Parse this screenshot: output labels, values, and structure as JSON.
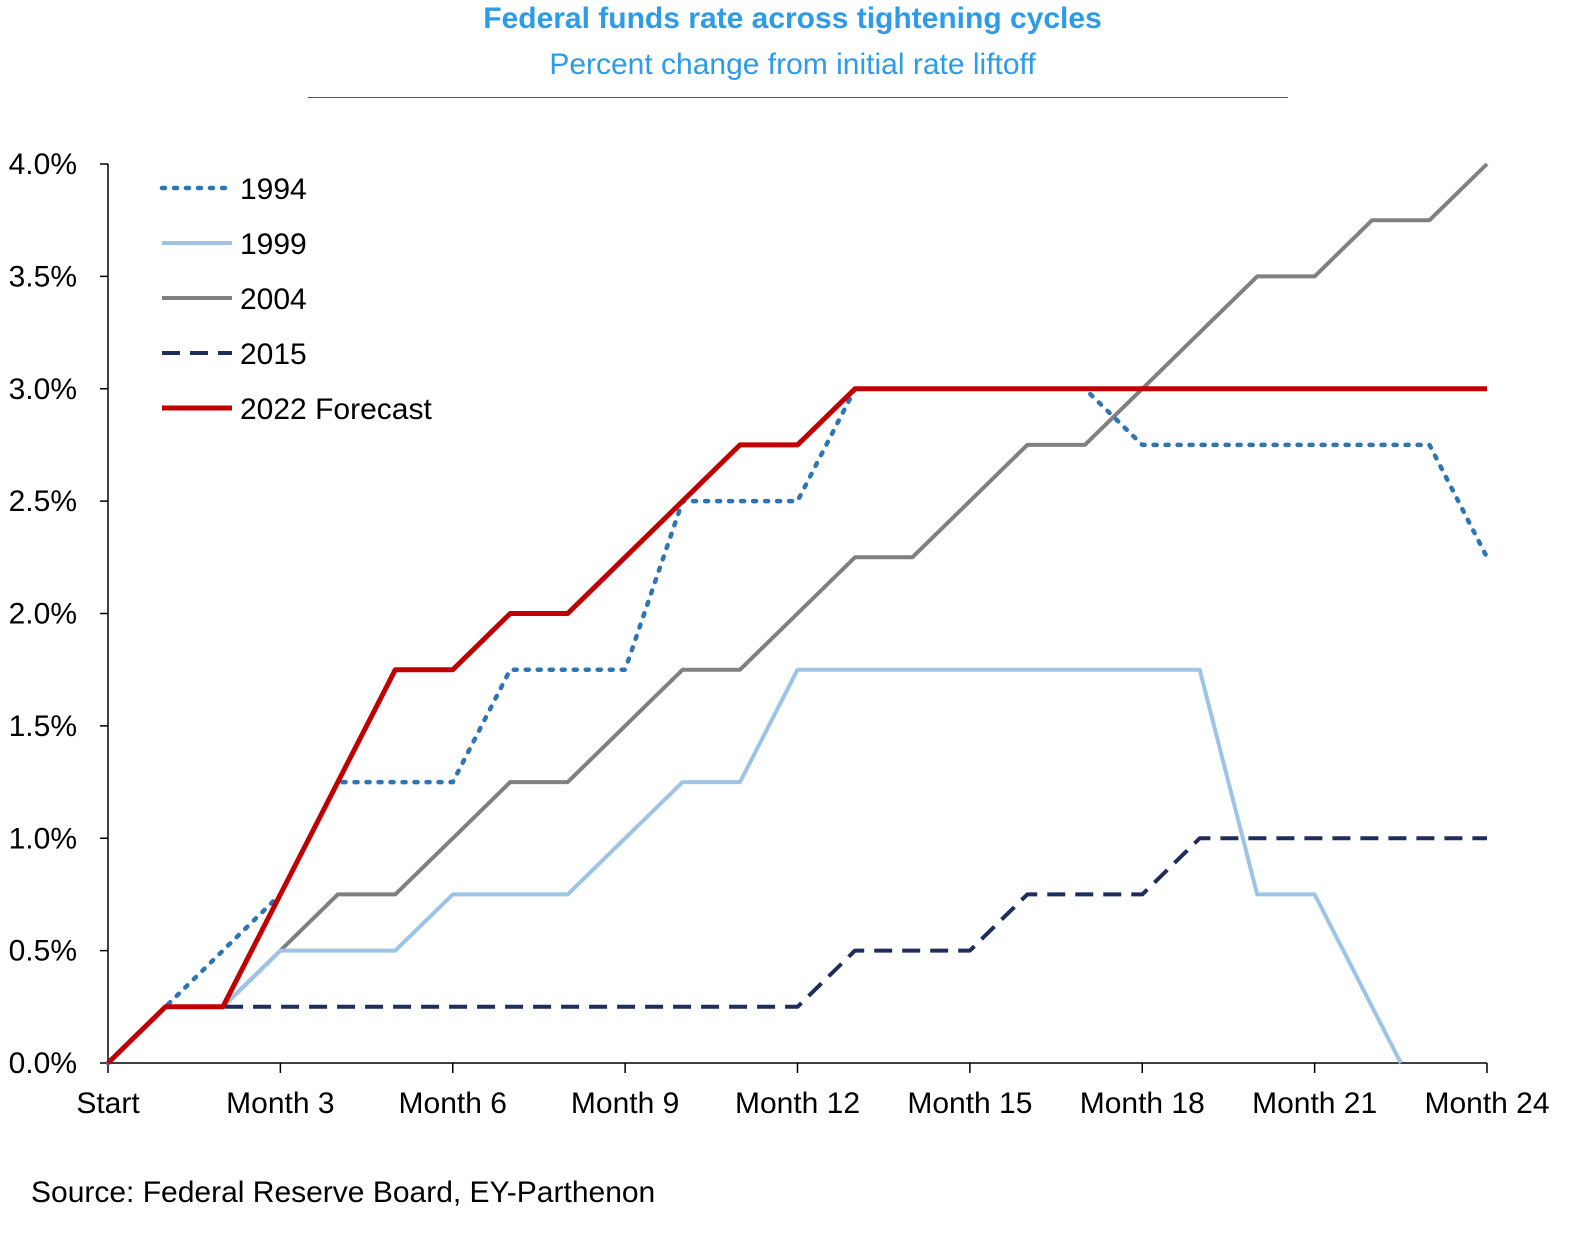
{
  "chart_data": {
    "type": "line",
    "title": "Federal funds rate across tightening cycles",
    "subtitle": "Percent change from initial rate liftoff",
    "source": "Source: Federal Reserve Board, EY-Parthenon",
    "x_months": [
      0,
      1,
      2,
      3,
      4,
      5,
      6,
      7,
      8,
      9,
      10,
      11,
      12,
      13,
      14,
      15,
      16,
      17,
      18,
      19,
      20,
      21,
      22,
      23,
      24
    ],
    "x_tick_labels": [
      "Start",
      "Month 3",
      "Month 6",
      "Month 9",
      "Month 12",
      "Month 15",
      "Month 18",
      "Month 21",
      "Month 24"
    ],
    "x_tick_months": [
      0,
      3,
      6,
      9,
      12,
      15,
      18,
      21,
      24
    ],
    "y_tick_labels": [
      "0.0%",
      "0.5%",
      "1.0%",
      "1.5%",
      "2.0%",
      "2.5%",
      "3.0%",
      "3.5%",
      "4.0%"
    ],
    "y_tick_values": [
      0,
      0.5,
      1.0,
      1.5,
      2.0,
      2.5,
      3.0,
      3.5,
      4.0
    ],
    "ylim": [
      0,
      4.0
    ],
    "xlim": [
      0,
      24
    ],
    "legend_position": "top-left",
    "grid": false,
    "series": [
      {
        "name": "1994",
        "color": "#2e75b6",
        "style": "dotted",
        "x": [
          0,
          1,
          2,
          3,
          4,
          5,
          6,
          7,
          8,
          9,
          10,
          11,
          12,
          13,
          14,
          15,
          16,
          17,
          18,
          19,
          20,
          21,
          22,
          23,
          24
        ],
        "values": [
          0,
          0.25,
          0.5,
          0.75,
          1.25,
          1.25,
          1.25,
          1.75,
          1.75,
          1.75,
          2.5,
          2.5,
          2.5,
          3.0,
          3.0,
          3.0,
          3.0,
          3.0,
          2.75,
          2.75,
          2.75,
          2.75,
          2.75,
          2.75,
          2.25
        ]
      },
      {
        "name": "1999",
        "color": "#9dc3e6",
        "style": "solid",
        "x": [
          0,
          1,
          2,
          3,
          4,
          5,
          6,
          7,
          8,
          9,
          10,
          11,
          12,
          13,
          14,
          15,
          16,
          17,
          18,
          19,
          20,
          21,
          22,
          22.5
        ],
        "values": [
          0,
          0.25,
          0.25,
          0.5,
          0.5,
          0.5,
          0.75,
          0.75,
          0.75,
          1.0,
          1.25,
          1.25,
          1.75,
          1.75,
          1.75,
          1.75,
          1.75,
          1.75,
          1.75,
          1.75,
          0.75,
          0.75,
          0.25,
          0
        ]
      },
      {
        "name": "2004",
        "color": "#808080",
        "style": "solid",
        "x": [
          0,
          1,
          2,
          3,
          4,
          5,
          6,
          7,
          8,
          9,
          10,
          11,
          12,
          13,
          14,
          15,
          16,
          17,
          18,
          19,
          20,
          21,
          22,
          23,
          24
        ],
        "values": [
          0,
          0.25,
          0.25,
          0.5,
          0.75,
          0.75,
          1.0,
          1.25,
          1.25,
          1.5,
          1.75,
          1.75,
          2.0,
          2.25,
          2.25,
          2.5,
          2.75,
          2.75,
          3.0,
          3.25,
          3.5,
          3.5,
          3.75,
          3.75,
          4.0
        ]
      },
      {
        "name": "2015",
        "color": "#1f2d5c",
        "style": "dashed",
        "x": [
          0,
          1,
          2,
          3,
          4,
          5,
          6,
          7,
          8,
          9,
          10,
          11,
          12,
          13,
          14,
          15,
          16,
          17,
          18,
          19,
          20,
          21,
          22,
          23,
          24
        ],
        "values": [
          0,
          0.25,
          0.25,
          0.25,
          0.25,
          0.25,
          0.25,
          0.25,
          0.25,
          0.25,
          0.25,
          0.25,
          0.25,
          0.5,
          0.5,
          0.5,
          0.75,
          0.75,
          0.75,
          1.0,
          1.0,
          1.0,
          1.0,
          1.0,
          1.0
        ]
      },
      {
        "name": "2022 Forecast",
        "color": "#c00000",
        "style": "solid",
        "x": [
          0,
          1,
          2,
          3,
          4,
          5,
          6,
          7,
          8,
          9,
          10,
          11,
          12,
          13,
          14,
          15,
          16,
          17,
          18,
          19,
          20,
          21,
          22,
          23,
          24
        ],
        "values": [
          0,
          0.25,
          0.25,
          0.75,
          1.25,
          1.75,
          1.75,
          2.0,
          2.0,
          2.25,
          2.5,
          2.75,
          2.75,
          3.0,
          3.0,
          3.0,
          3.0,
          3.0,
          3.0,
          3.0,
          3.0,
          3.0,
          3.0,
          3.0,
          3.0
        ]
      }
    ],
    "colors": {
      "title": "#2e9be6",
      "subtitle": "#2e9be6",
      "axis": "#000000"
    }
  }
}
